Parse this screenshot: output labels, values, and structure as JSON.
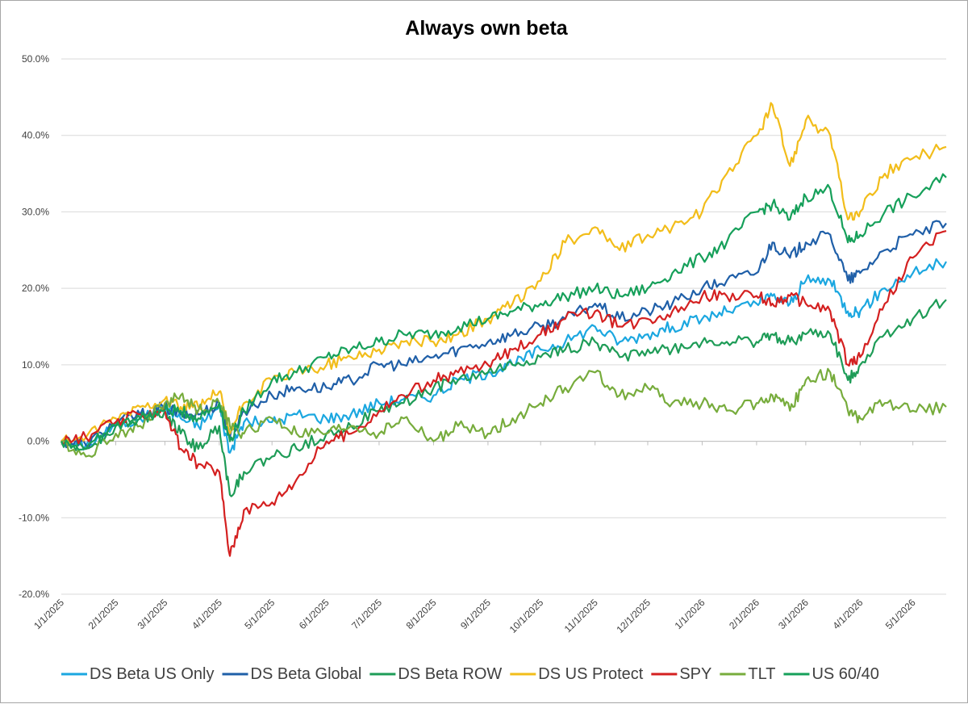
{
  "chart_data": {
    "type": "line",
    "title": "Always own beta",
    "xlabel": "",
    "ylabel": "",
    "ylim": [
      -20,
      50
    ],
    "y_ticks": [
      "-20.0%",
      "-10.0%",
      "0.0%",
      "10.0%",
      "20.0%",
      "30.0%",
      "40.0%",
      "50.0%"
    ],
    "y_tick_values": [
      -20,
      -10,
      0,
      10,
      20,
      30,
      40,
      50
    ],
    "x_ticks": [
      "1/1/2025",
      "2/1/2025",
      "3/1/2025",
      "4/1/2025",
      "5/1/2025",
      "6/1/2025",
      "7/1/2025",
      "8/1/2025",
      "9/1/2025",
      "10/1/2025",
      "11/1/2025",
      "12/1/2025",
      "1/1/2026",
      "2/1/2026",
      "3/1/2026",
      "4/1/2026",
      "5/1/2026"
    ],
    "x_range": [
      "1/1/2025",
      "5/20/2026"
    ],
    "grid": "horizontal",
    "legend_position": "bottom",
    "series": [
      {
        "name": "DS Beta US Only",
        "color": "#1ba7e0",
        "points": [
          [
            "1/1/2025",
            0
          ],
          [
            "1/15/2025",
            -0.5
          ],
          [
            "2/1/2025",
            2
          ],
          [
            "2/15/2025",
            3
          ],
          [
            "3/1/2025",
            4.5
          ],
          [
            "3/10/2025",
            3
          ],
          [
            "3/20/2025",
            2
          ],
          [
            "4/1/2025",
            4.5
          ],
          [
            "4/7/2025",
            -1.5
          ],
          [
            "4/15/2025",
            2.5
          ],
          [
            "5/1/2025",
            2.5
          ],
          [
            "5/15/2025",
            3.5
          ],
          [
            "6/1/2025",
            3
          ],
          [
            "6/15/2025",
            3.5
          ],
          [
            "7/1/2025",
            5
          ],
          [
            "7/15/2025",
            5.5
          ],
          [
            "8/1/2025",
            6
          ],
          [
            "8/15/2025",
            8
          ],
          [
            "9/1/2025",
            9
          ],
          [
            "9/15/2025",
            10
          ],
          [
            "10/1/2025",
            12
          ],
          [
            "10/15/2025",
            13
          ],
          [
            "11/1/2025",
            15
          ],
          [
            "11/15/2025",
            13
          ],
          [
            "12/1/2025",
            14
          ],
          [
            "12/15/2025",
            15
          ],
          [
            "1/1/2026",
            16
          ],
          [
            "1/15/2026",
            17
          ],
          [
            "2/1/2026",
            18
          ],
          [
            "2/10/2026",
            19
          ],
          [
            "2/20/2026",
            18
          ],
          [
            "3/1/2026",
            21
          ],
          [
            "3/15/2026",
            21
          ],
          [
            "3/25/2026",
            17
          ],
          [
            "4/1/2026",
            17
          ],
          [
            "4/15/2026",
            20
          ],
          [
            "5/1/2026",
            22
          ],
          [
            "5/20/2026",
            23.5
          ]
        ]
      },
      {
        "name": "DS Beta Global",
        "color": "#1f5fa8",
        "points": [
          [
            "1/1/2025",
            0
          ],
          [
            "1/15/2025",
            -0.5
          ],
          [
            "2/1/2025",
            2.5
          ],
          [
            "2/15/2025",
            3.5
          ],
          [
            "3/1/2025",
            4.5
          ],
          [
            "3/10/2025",
            3.5
          ],
          [
            "3/20/2025",
            3.5
          ],
          [
            "4/1/2025",
            5
          ],
          [
            "4/7/2025",
            0.5
          ],
          [
            "4/15/2025",
            4
          ],
          [
            "5/1/2025",
            6
          ],
          [
            "5/15/2025",
            7
          ],
          [
            "6/1/2025",
            7
          ],
          [
            "6/15/2025",
            8
          ],
          [
            "7/1/2025",
            10
          ],
          [
            "7/15/2025",
            10
          ],
          [
            "8/1/2025",
            11
          ],
          [
            "8/15/2025",
            12
          ],
          [
            "9/1/2025",
            13
          ],
          [
            "9/15/2025",
            14
          ],
          [
            "10/1/2025",
            15
          ],
          [
            "10/15/2025",
            16
          ],
          [
            "11/1/2025",
            18
          ],
          [
            "11/15/2025",
            16
          ],
          [
            "12/1/2025",
            17
          ],
          [
            "12/15/2025",
            18
          ],
          [
            "1/1/2026",
            20
          ],
          [
            "1/15/2026",
            21
          ],
          [
            "2/1/2026",
            22
          ],
          [
            "2/10/2026",
            26
          ],
          [
            "2/20/2026",
            24
          ],
          [
            "3/1/2026",
            26
          ],
          [
            "3/15/2026",
            27
          ],
          [
            "3/25/2026",
            21
          ],
          [
            "4/1/2026",
            22
          ],
          [
            "4/15/2026",
            25
          ],
          [
            "5/1/2026",
            27
          ],
          [
            "5/20/2026",
            28.5
          ]
        ]
      },
      {
        "name": "DS Beta ROW",
        "color": "#1e9c57",
        "points": [
          [
            "1/1/2025",
            0
          ],
          [
            "1/15/2025",
            -1
          ],
          [
            "2/1/2025",
            2
          ],
          [
            "2/15/2025",
            3
          ],
          [
            "3/1/2025",
            4
          ],
          [
            "3/10/2025",
            1
          ],
          [
            "3/20/2025",
            -1
          ],
          [
            "4/1/2025",
            2
          ],
          [
            "4/7/2025",
            -7
          ],
          [
            "4/15/2025",
            -4
          ],
          [
            "5/1/2025",
            -2
          ],
          [
            "5/15/2025",
            -1
          ],
          [
            "6/1/2025",
            1
          ],
          [
            "6/15/2025",
            2
          ],
          [
            "7/1/2025",
            4
          ],
          [
            "7/15/2025",
            5
          ],
          [
            "8/1/2025",
            7
          ],
          [
            "8/15/2025",
            8
          ],
          [
            "9/1/2025",
            9
          ],
          [
            "9/15/2025",
            10
          ],
          [
            "10/1/2025",
            11
          ],
          [
            "10/15/2025",
            12
          ],
          [
            "11/1/2025",
            13
          ],
          [
            "11/15/2025",
            11
          ],
          [
            "12/1/2025",
            12
          ],
          [
            "12/15/2025",
            12
          ],
          [
            "1/1/2026",
            13
          ],
          [
            "1/15/2026",
            13
          ],
          [
            "2/1/2026",
            13
          ],
          [
            "2/10/2026",
            14
          ],
          [
            "2/20/2026",
            13
          ],
          [
            "3/1/2026",
            14
          ],
          [
            "3/15/2026",
            14
          ],
          [
            "3/25/2026",
            8
          ],
          [
            "4/1/2026",
            10
          ],
          [
            "4/15/2026",
            14
          ],
          [
            "5/1/2026",
            16
          ],
          [
            "5/20/2026",
            18.5
          ]
        ]
      },
      {
        "name": "DS  US Protect",
        "color": "#f2bd1a",
        "points": [
          [
            "1/1/2025",
            0
          ],
          [
            "1/15/2025",
            0.5
          ],
          [
            "2/1/2025",
            3
          ],
          [
            "2/15/2025",
            4.5
          ],
          [
            "3/1/2025",
            5.5
          ],
          [
            "3/10/2025",
            4.5
          ],
          [
            "3/20/2025",
            4.5
          ],
          [
            "4/1/2025",
            6.5
          ],
          [
            "4/7/2025",
            1
          ],
          [
            "4/15/2025",
            5
          ],
          [
            "5/1/2025",
            8
          ],
          [
            "5/15/2025",
            9
          ],
          [
            "6/1/2025",
            10
          ],
          [
            "6/15/2025",
            11
          ],
          [
            "7/1/2025",
            12
          ],
          [
            "7/15/2025",
            13
          ],
          [
            "8/1/2025",
            13
          ],
          [
            "8/15/2025",
            14
          ],
          [
            "9/1/2025",
            16
          ],
          [
            "9/15/2025",
            18
          ],
          [
            "10/1/2025",
            21
          ],
          [
            "10/15/2025",
            26
          ],
          [
            "11/1/2025",
            28
          ],
          [
            "11/15/2025",
            25
          ],
          [
            "12/1/2025",
            27
          ],
          [
            "12/15/2025",
            28
          ],
          [
            "1/1/2026",
            30
          ],
          [
            "1/15/2026",
            35
          ],
          [
            "2/1/2026",
            40
          ],
          [
            "2/10/2026",
            44
          ],
          [
            "2/20/2026",
            36
          ],
          [
            "3/1/2026",
            42
          ],
          [
            "3/15/2026",
            40
          ],
          [
            "3/25/2026",
            29
          ],
          [
            "4/1/2026",
            30
          ],
          [
            "4/15/2026",
            35
          ],
          [
            "5/1/2026",
            37
          ],
          [
            "5/20/2026",
            38.5
          ]
        ]
      },
      {
        "name": "SPY",
        "color": "#d42020",
        "points": [
          [
            "1/1/2025",
            0
          ],
          [
            "1/15/2025",
            0.5
          ],
          [
            "2/1/2025",
            2.5
          ],
          [
            "2/15/2025",
            3.5
          ],
          [
            "3/1/2025",
            4
          ],
          [
            "3/10/2025",
            -1
          ],
          [
            "3/20/2025",
            -3
          ],
          [
            "4/1/2025",
            -4
          ],
          [
            "4/7/2025",
            -15
          ],
          [
            "4/15/2025",
            -9
          ],
          [
            "5/1/2025",
            -8
          ],
          [
            "5/15/2025",
            -5
          ],
          [
            "6/1/2025",
            0
          ],
          [
            "6/15/2025",
            1
          ],
          [
            "7/1/2025",
            4
          ],
          [
            "7/15/2025",
            6
          ],
          [
            "8/1/2025",
            8
          ],
          [
            "8/15/2025",
            9
          ],
          [
            "9/1/2025",
            10
          ],
          [
            "9/15/2025",
            12
          ],
          [
            "10/1/2025",
            14
          ],
          [
            "10/15/2025",
            16
          ],
          [
            "11/1/2025",
            17
          ],
          [
            "11/15/2025",
            15
          ],
          [
            "12/1/2025",
            16
          ],
          [
            "12/15/2025",
            17
          ],
          [
            "1/1/2026",
            19
          ],
          [
            "1/15/2026",
            19
          ],
          [
            "2/1/2026",
            19
          ],
          [
            "2/10/2026",
            18
          ],
          [
            "2/20/2026",
            19
          ],
          [
            "3/1/2026",
            18
          ],
          [
            "3/15/2026",
            17
          ],
          [
            "3/25/2026",
            10
          ],
          [
            "4/1/2026",
            11
          ],
          [
            "4/15/2026",
            18
          ],
          [
            "5/1/2026",
            24
          ],
          [
            "5/20/2026",
            27.5
          ]
        ]
      },
      {
        "name": "TLT",
        "color": "#77ac3c",
        "points": [
          [
            "1/1/2025",
            0
          ],
          [
            "1/15/2025",
            -2
          ],
          [
            "2/1/2025",
            1
          ],
          [
            "2/15/2025",
            2
          ],
          [
            "3/1/2025",
            5
          ],
          [
            "3/10/2025",
            6
          ],
          [
            "3/20/2025",
            4
          ],
          [
            "4/1/2025",
            5
          ],
          [
            "4/7/2025",
            2
          ],
          [
            "4/15/2025",
            1
          ],
          [
            "5/1/2025",
            3
          ],
          [
            "5/15/2025",
            1
          ],
          [
            "6/1/2025",
            1
          ],
          [
            "6/15/2025",
            2
          ],
          [
            "7/1/2025",
            1
          ],
          [
            "7/15/2025",
            3
          ],
          [
            "8/1/2025",
            0
          ],
          [
            "8/15/2025",
            2
          ],
          [
            "9/1/2025",
            1
          ],
          [
            "9/15/2025",
            3
          ],
          [
            "10/1/2025",
            5
          ],
          [
            "10/15/2025",
            7
          ],
          [
            "11/1/2025",
            9
          ],
          [
            "11/15/2025",
            6
          ],
          [
            "12/1/2025",
            7
          ],
          [
            "12/15/2025",
            5
          ],
          [
            "1/1/2026",
            5
          ],
          [
            "1/15/2026",
            4
          ],
          [
            "2/1/2026",
            5
          ],
          [
            "2/10/2026",
            6
          ],
          [
            "2/20/2026",
            4
          ],
          [
            "3/1/2026",
            8
          ],
          [
            "3/15/2026",
            9
          ],
          [
            "3/25/2026",
            4
          ],
          [
            "4/1/2026",
            3
          ],
          [
            "4/15/2026",
            5
          ],
          [
            "5/1/2026",
            4
          ],
          [
            "5/20/2026",
            4.5
          ]
        ]
      },
      {
        "name": "US 60/40",
        "color": "#16a05a",
        "points": [
          [
            "1/1/2025",
            0
          ],
          [
            "1/15/2025",
            -1
          ],
          [
            "2/1/2025",
            2
          ],
          [
            "2/15/2025",
            3
          ],
          [
            "3/1/2025",
            4
          ],
          [
            "3/10/2025",
            4
          ],
          [
            "3/20/2025",
            3
          ],
          [
            "4/1/2025",
            5
          ],
          [
            "4/7/2025",
            0
          ],
          [
            "4/15/2025",
            4
          ],
          [
            "5/1/2025",
            8
          ],
          [
            "5/15/2025",
            9
          ],
          [
            "6/1/2025",
            11
          ],
          [
            "6/15/2025",
            12
          ],
          [
            "7/1/2025",
            13
          ],
          [
            "7/15/2025",
            14
          ],
          [
            "8/1/2025",
            14
          ],
          [
            "8/15/2025",
            15
          ],
          [
            "9/1/2025",
            16
          ],
          [
            "9/15/2025",
            17
          ],
          [
            "10/1/2025",
            18
          ],
          [
            "10/15/2025",
            19
          ],
          [
            "11/1/2025",
            20
          ],
          [
            "11/15/2025",
            19
          ],
          [
            "12/1/2025",
            20
          ],
          [
            "12/15/2025",
            22
          ],
          [
            "1/1/2026",
            24
          ],
          [
            "1/15/2026",
            26
          ],
          [
            "2/1/2026",
            30
          ],
          [
            "2/10/2026",
            31
          ],
          [
            "2/20/2026",
            29
          ],
          [
            "3/1/2026",
            32
          ],
          [
            "3/15/2026",
            33
          ],
          [
            "3/25/2026",
            26
          ],
          [
            "4/1/2026",
            27
          ],
          [
            "4/15/2026",
            30
          ],
          [
            "5/1/2026",
            32
          ],
          [
            "5/20/2026",
            34.5
          ]
        ]
      }
    ]
  }
}
